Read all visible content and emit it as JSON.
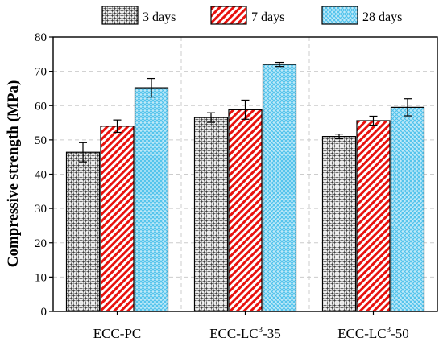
{
  "chart_data": {
    "type": "bar",
    "ylabel": "Compressive strength (MPa)",
    "xlabel": "",
    "ylim": [
      0,
      80
    ],
    "yticks": [
      0,
      10,
      20,
      30,
      40,
      50,
      60,
      70,
      80
    ],
    "grid": true,
    "legend_position": "top",
    "categories": [
      {
        "base": "ECC-PC",
        "sup": "",
        "rest": ""
      },
      {
        "base": "ECC-LC",
        "sup": "3",
        "rest": "-35"
      },
      {
        "base": "ECC-LC",
        "sup": "3",
        "rest": "-50"
      }
    ],
    "series": [
      {
        "name": "3 days",
        "values": [
          46.4,
          56.5,
          51.0
        ],
        "errors": [
          2.8,
          1.4,
          0.7
        ],
        "color": "#4d4d4d",
        "pattern": "checker"
      },
      {
        "name": "7 days",
        "values": [
          54.0,
          58.8,
          55.6
        ],
        "errors": [
          1.8,
          2.8,
          1.3
        ],
        "color": "#e8120e",
        "pattern": "hatch"
      },
      {
        "name": "28 days",
        "values": [
          65.2,
          72.0,
          59.5
        ],
        "errors": [
          2.7,
          0.6,
          2.5
        ],
        "color": "#55c8f0",
        "pattern": "mesh"
      }
    ]
  }
}
